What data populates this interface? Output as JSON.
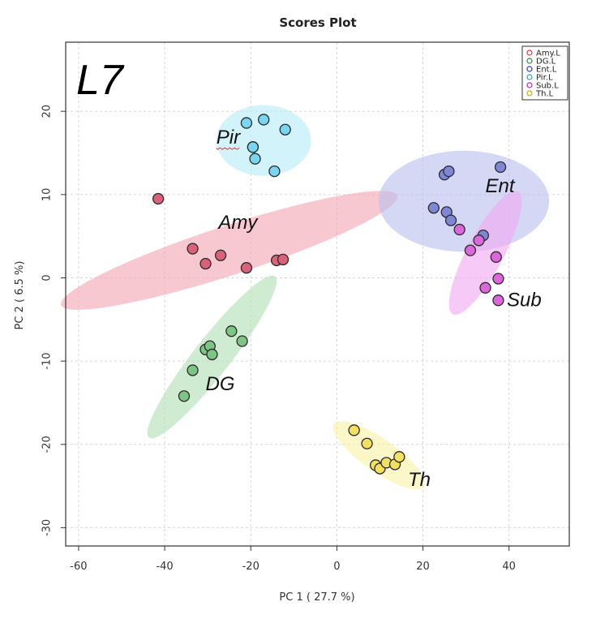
{
  "chart_data": {
    "type": "scatter",
    "title": "Scores Plot",
    "xlabel": "PC 1 ( 27.7 %)",
    "ylabel": "PC 2 ( 6.5 %)",
    "panel_label": "L7",
    "xlim": [
      -63,
      54
    ],
    "ylim": [
      -32.2,
      28.3
    ],
    "xticks": [
      -60,
      -40,
      -20,
      0,
      20,
      40
    ],
    "yticks": [
      -30,
      -20,
      -10,
      0,
      10,
      20
    ],
    "grid": true,
    "legend_position": "top-right",
    "series": [
      {
        "name": "Amy.L",
        "label": "Amy",
        "color": "#e8324a",
        "fill": "#d9627a",
        "ellipse_color": "#f4a6b4",
        "points": [
          [
            -41.5,
            9.5
          ],
          [
            -33.5,
            3.5
          ],
          [
            -30.5,
            1.7
          ],
          [
            -27,
            2.7
          ],
          [
            -21,
            1.2
          ],
          [
            -14,
            2.1
          ],
          [
            -12.5,
            2.2
          ]
        ],
        "ellipse": {
          "cx": -25,
          "cy": 3.3,
          "rx": 28,
          "ry": 3.9,
          "rotation_deg": -18
        },
        "label_pos": [
          -27.5,
          5.9
        ]
      },
      {
        "name": "DG.L",
        "label": "DG",
        "color": "#2e8b3a",
        "fill": "#7cc582",
        "ellipse_color": "#b2dfb6",
        "points": [
          [
            -35.5,
            -14.2
          ],
          [
            -33.5,
            -11.1
          ],
          [
            -30.5,
            -8.6
          ],
          [
            -29.5,
            -8.2
          ],
          [
            -29,
            -9.2
          ],
          [
            -24.5,
            -6.4
          ],
          [
            -22,
            -7.6
          ]
        ],
        "ellipse": {
          "cx": -29,
          "cy": -9.5,
          "rx": 16.2,
          "ry": 2.9,
          "rotation_deg": -52
        },
        "label_pos": [
          -30.5,
          -13.5
        ]
      },
      {
        "name": "Ent.L",
        "label": "Ent",
        "color": "#3a3ab0",
        "fill": "#7f86d6",
        "ellipse_color": "#bcc0ee",
        "points": [
          [
            22.5,
            8.4
          ],
          [
            25,
            12.4
          ],
          [
            25.5,
            7.9
          ],
          [
            26,
            12.8
          ],
          [
            26.5,
            6.9
          ],
          [
            34,
            5.1
          ],
          [
            38,
            13.3
          ]
        ],
        "ellipse": {
          "cx": 29.5,
          "cy": 9.2,
          "rx": 13.5,
          "ry": 8,
          "rotation_deg": 0
        },
        "label_pos": [
          34.5,
          10.3
        ]
      },
      {
        "name": "Pir.L",
        "label": "Pir",
        "color": "#2aa6c8",
        "fill": "#7ad6ef",
        "ellipse_color": "#b8ecf7",
        "points": [
          [
            -21,
            18.6
          ],
          [
            -19.5,
            15.7
          ],
          [
            -19.5,
            15.7
          ],
          [
            -19,
            14.3
          ],
          [
            -17,
            19
          ],
          [
            -14.5,
            12.8
          ],
          [
            -12,
            17.8
          ]
        ],
        "ellipse": {
          "cx": -17,
          "cy": 16.5,
          "rx": 7.5,
          "ry": 5.6,
          "rotation_deg": 0
        },
        "label_pos": [
          -28,
          16.1
        ]
      },
      {
        "name": "Sub.L",
        "label": "Sub",
        "color": "#c020c0",
        "fill": "#dd66dd",
        "ellipse_color": "#f0a8f0",
        "points": [
          [
            28.5,
            5.8
          ],
          [
            31,
            3.3
          ],
          [
            33,
            4.5
          ],
          [
            37,
            2.5
          ],
          [
            34.5,
            -1.2
          ],
          [
            37.5,
            -0.1
          ],
          [
            37.5,
            -2.7
          ]
        ],
        "ellipse": {
          "cx": 34.5,
          "cy": 3,
          "rx": 11,
          "ry": 2.9,
          "rotation_deg": -62
        },
        "label_pos": [
          39.5,
          -3.4
        ]
      },
      {
        "name": "Th.L",
        "label": "Th",
        "color": "#c8b000",
        "fill": "#f2e060",
        "ellipse_color": "#f8f2a8",
        "points": [
          [
            4,
            -18.3
          ],
          [
            7,
            -19.9
          ],
          [
            9,
            -22.5
          ],
          [
            10,
            -22.9
          ],
          [
            11.5,
            -22.2
          ],
          [
            13.5,
            -22.4
          ],
          [
            14.5,
            -21.5
          ]
        ],
        "ellipse": {
          "cx": 9.8,
          "cy": -21.3,
          "rx": 8.7,
          "ry": 2.6,
          "rotation_deg": 35
        },
        "label_pos": [
          16.5,
          -25
        ]
      }
    ]
  }
}
